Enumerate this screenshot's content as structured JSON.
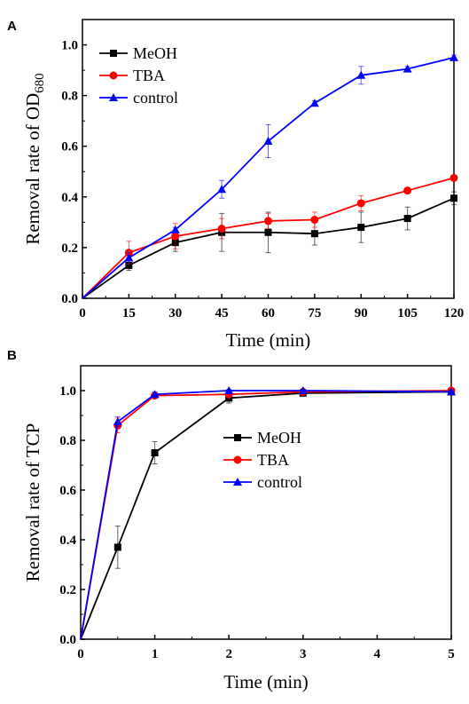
{
  "chart_data": [
    {
      "panel": "A",
      "type": "line",
      "title": "",
      "xlabel": "Time (min)",
      "ylabel": "Removal rate of OD680",
      "ylabel_main": "Removal rate of OD",
      "ylabel_sub": "680",
      "xlim": [
        0,
        120
      ],
      "ylim": [
        0,
        1.1
      ],
      "xticks": [
        0,
        15,
        30,
        45,
        60,
        75,
        90,
        105,
        120
      ],
      "yticks": [
        0.0,
        0.2,
        0.4,
        0.6,
        0.8,
        1.0
      ],
      "ytick_labels": [
        "0.0",
        "0.2",
        "0.4",
        "0.6",
        "0.8",
        "1.0"
      ],
      "legend_position": "top-left",
      "grid": false,
      "series": [
        {
          "name": "MeOH",
          "color": "#000000",
          "marker": "square",
          "x": [
            0,
            15,
            30,
            45,
            60,
            75,
            90,
            105,
            120
          ],
          "values": [
            0,
            0.13,
            0.22,
            0.26,
            0.26,
            0.255,
            0.28,
            0.315,
            0.395
          ],
          "errors": [
            0,
            0.02,
            0.035,
            0.075,
            0.08,
            0.045,
            0.06,
            0.045,
            0.025
          ]
        },
        {
          "name": "TBA",
          "color": "#ff0000",
          "marker": "circle",
          "x": [
            0,
            15,
            30,
            45,
            60,
            75,
            90,
            105,
            120
          ],
          "values": [
            0,
            0.18,
            0.245,
            0.275,
            0.305,
            0.31,
            0.375,
            0.425,
            0.475
          ],
          "errors": [
            0,
            0.045,
            0.05,
            0.04,
            0.03,
            0.03,
            0.03,
            0.01,
            0.01
          ]
        },
        {
          "name": "control",
          "color": "#0000ff",
          "marker": "triangle",
          "x": [
            0,
            15,
            30,
            45,
            60,
            75,
            90,
            105,
            120
          ],
          "values": [
            0,
            0.16,
            0.27,
            0.43,
            0.62,
            0.77,
            0.88,
            0.905,
            0.95
          ],
          "errors": [
            0,
            0.02,
            0.01,
            0.035,
            0.065,
            0.01,
            0.035,
            0.01,
            0.01
          ]
        }
      ]
    },
    {
      "panel": "B",
      "type": "line",
      "title": "",
      "xlabel": "Time (min)",
      "ylabel": "Removal rate of TCP",
      "xlim": [
        0,
        5
      ],
      "ylim": [
        0,
        1.1
      ],
      "xticks": [
        0,
        1,
        2,
        3,
        4,
        5
      ],
      "yticks": [
        0.0,
        0.2,
        0.4,
        0.6,
        0.8,
        1.0
      ],
      "ytick_labels": [
        "0.0",
        "0.2",
        "0.4",
        "0.6",
        "0.8",
        "1.0"
      ],
      "legend_position": "center-right",
      "grid": false,
      "series": [
        {
          "name": "MeOH",
          "color": "#000000",
          "marker": "square",
          "x": [
            0,
            0.5,
            1,
            2,
            3,
            5
          ],
          "values": [
            0,
            0.37,
            0.75,
            0.97,
            0.99,
            0.995
          ],
          "errors": [
            0,
            0.085,
            0.045,
            0.02,
            0.005,
            0.005
          ]
        },
        {
          "name": "TBA",
          "color": "#ff0000",
          "marker": "circle",
          "x": [
            0,
            0.5,
            1,
            2,
            3,
            5
          ],
          "values": [
            0,
            0.86,
            0.98,
            0.985,
            0.995,
            1.0
          ],
          "errors": [
            0,
            0.03,
            0.01,
            0.005,
            0.005,
            0.005
          ]
        },
        {
          "name": "control",
          "color": "#0000ff",
          "marker": "triangle",
          "x": [
            0,
            0.5,
            1,
            2,
            3,
            5
          ],
          "values": [
            0,
            0.875,
            0.985,
            1.0,
            1.0,
            0.995
          ],
          "errors": [
            0,
            0.02,
            0.01,
            0.005,
            0.005,
            0.005
          ]
        }
      ]
    }
  ]
}
